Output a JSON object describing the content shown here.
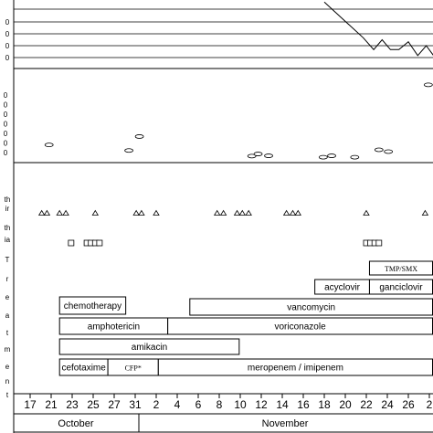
{
  "chart_data": {
    "type": "timeline",
    "x_ticks": [
      "17",
      "21",
      "23",
      "25",
      "27",
      "31",
      "2",
      "4",
      "6",
      "8",
      "10",
      "12",
      "14",
      "16",
      "18",
      "20",
      "22",
      "24",
      "26",
      "2"
    ],
    "months": [
      "October",
      "November"
    ],
    "top_panel": {
      "type": "line",
      "y_tick_labels": [
        "0",
        "0",
        "0",
        "0"
      ],
      "points": [
        [
          14,
          1.4
        ],
        [
          15.85,
          0.5
        ],
        [
          16.35,
          0.2
        ],
        [
          16.75,
          0.45
        ],
        [
          17.15,
          0.2
        ],
        [
          17.55,
          0.2
        ],
        [
          18.0,
          0.4
        ],
        [
          18.45,
          0.05
        ],
        [
          18.85,
          0.3
        ],
        [
          19.2,
          0.05
        ],
        [
          19.6,
          0.3
        ]
      ]
    },
    "middle_panel": {
      "type": "scatter",
      "marker": "ellipse",
      "y_tick_labels": [
        "0",
        "0",
        "0",
        "0",
        "0",
        "0",
        "0"
      ],
      "points": [
        [
          0.9,
          0.12
        ],
        [
          4.7,
          0.08
        ],
        [
          5.2,
          0.18
        ],
        [
          10.55,
          0.04
        ],
        [
          10.85,
          0.055
        ],
        [
          11.35,
          0.042
        ],
        [
          13.95,
          0.032
        ],
        [
          14.35,
          0.042
        ],
        [
          15.45,
          0.032
        ],
        [
          16.6,
          0.085
        ],
        [
          17.05,
          0.072
        ],
        [
          18.95,
          0.55
        ]
      ]
    },
    "edge_labels": [
      "th",
      "ir",
      "th",
      "ia",
      "T",
      "r",
      "e",
      "a",
      "t",
      "m",
      "e",
      "n",
      "t"
    ],
    "triangle_events": [
      0.55,
      0.8,
      1.4,
      1.7,
      3.1,
      5.05,
      5.3,
      6.0,
      8.9,
      9.2,
      9.85,
      10.1,
      10.4,
      12.2,
      12.5,
      12.75,
      16.0,
      18.8
    ],
    "square_events": [
      1.95,
      2.7,
      2.9,
      3.1,
      3.3,
      16.0,
      16.2,
      16.4,
      16.6
    ],
    "treatments": [
      {
        "label": "TMP/SMX",
        "start": 16.15,
        "end": 20.5
      },
      {
        "label": "acyclovir",
        "start": 13.55,
        "end": 16.15
      },
      {
        "label": "ganciclovir",
        "start": 16.15,
        "end": 20.5
      },
      {
        "label": "chemotherapy",
        "start": 1.4,
        "end": 4.55
      },
      {
        "label": "vancomycin",
        "start": 7.6,
        "end": 20.5
      },
      {
        "label": "amphotericin",
        "start": 1.4,
        "end": 6.55
      },
      {
        "label": "voriconazole",
        "start": 6.55,
        "end": 20.5
      },
      {
        "label": "amikacin",
        "start": 1.4,
        "end": 9.95
      },
      {
        "label": "cefotaxime",
        "start": 1.4,
        "end": 3.7
      },
      {
        "label": "CFP*",
        "start": 3.7,
        "end": 6.1
      },
      {
        "label": "meropenem / imipenem",
        "start": 6.1,
        "end": 20.5
      }
    ]
  }
}
